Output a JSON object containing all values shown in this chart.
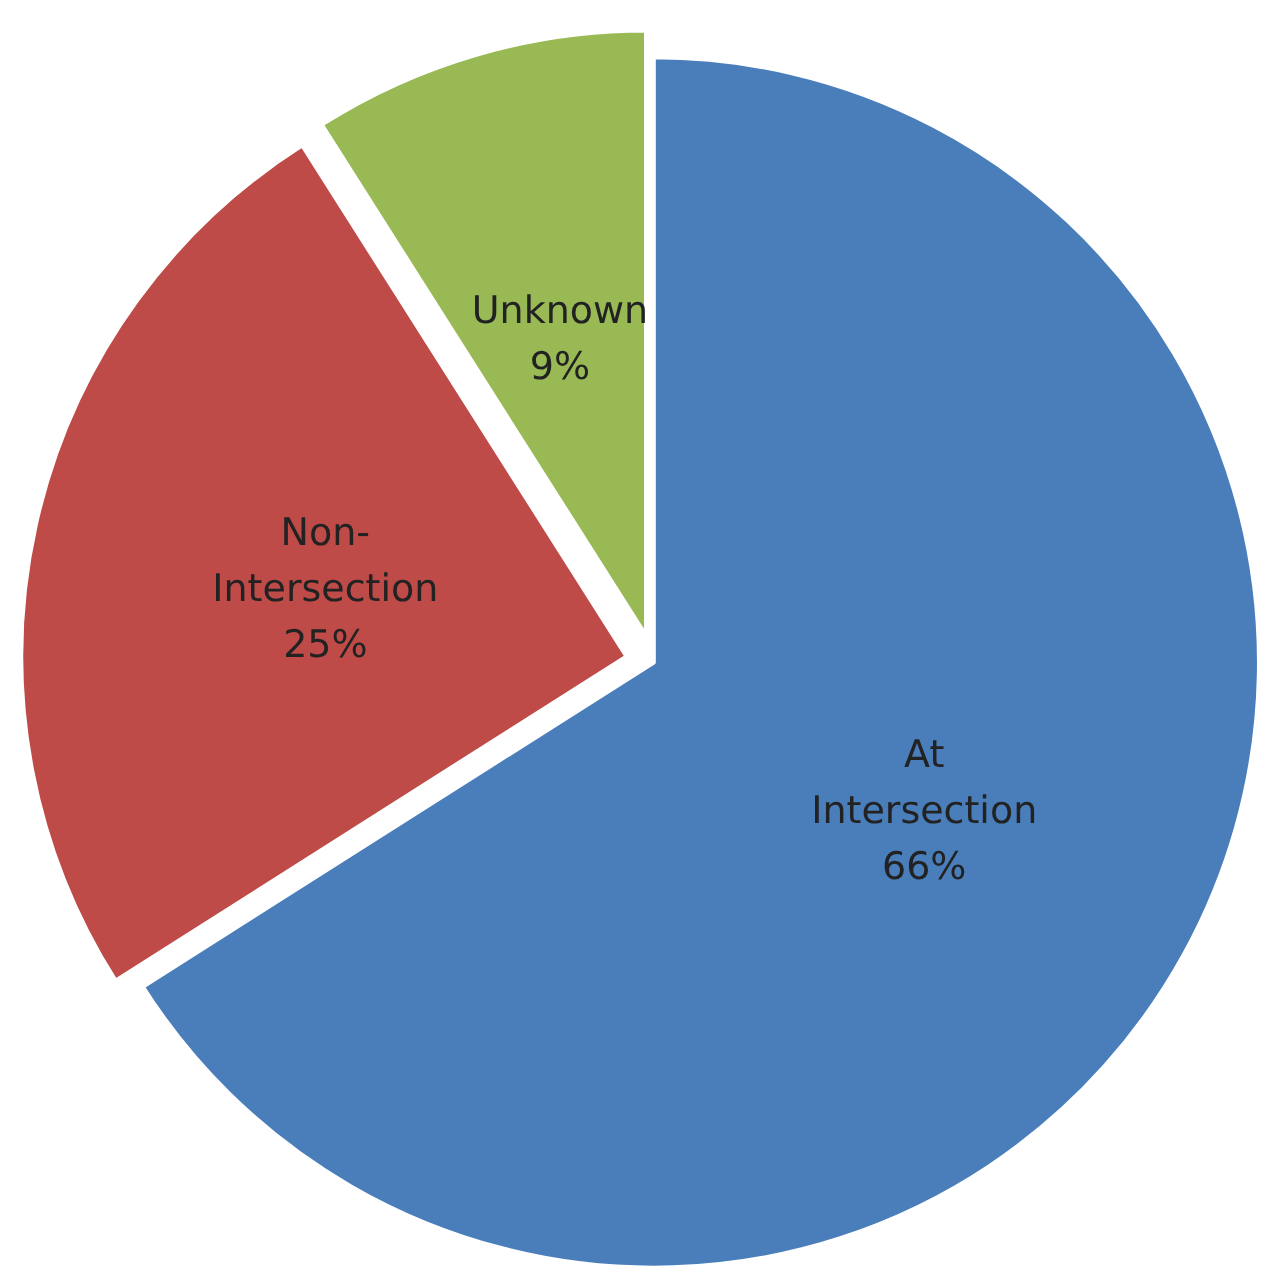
{
  "chart_data": {
    "type": "pie",
    "categories": [
      "At Intersection",
      "Non-Intersection",
      "Unknown"
    ],
    "values": [
      66,
      25,
      9
    ],
    "value_labels": [
      "66%",
      "25%",
      "9%"
    ],
    "colors": [
      "#4a7ebb",
      "#be4b48",
      "#98b954"
    ],
    "legend": false
  }
}
